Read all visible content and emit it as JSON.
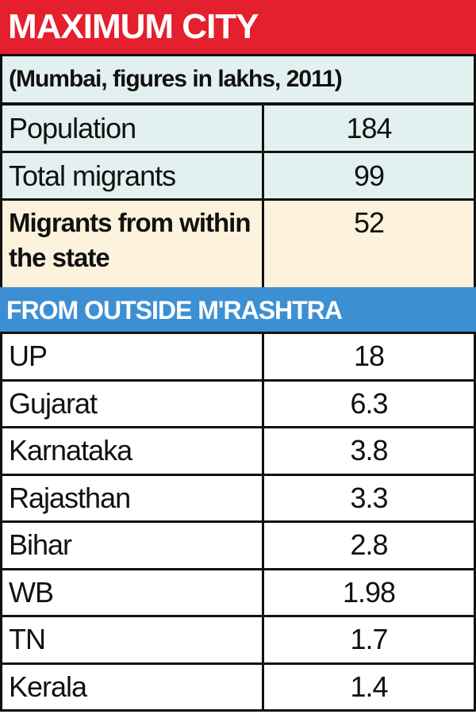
{
  "header": {
    "title": "MAXIMUM CITY",
    "subtitle": "(Mumbai, figures in lakhs, 2011)"
  },
  "summary": {
    "rows": [
      [
        "Population",
        184
      ],
      [
        "Total migrants",
        99
      ],
      [
        "Migrants from within the state",
        52
      ]
    ]
  },
  "section": {
    "title": "FROM OUTSIDE M'RASHTRA",
    "rows": [
      [
        "UP",
        18
      ],
      [
        "Gujarat",
        6.3
      ],
      [
        "Karnataka",
        3.8
      ],
      [
        "Rajasthan",
        3.3
      ],
      [
        "Bihar",
        2.8
      ],
      [
        "WB",
        1.98
      ],
      [
        "TN",
        1.7
      ],
      [
        "Kerala",
        1.4
      ]
    ]
  }
}
